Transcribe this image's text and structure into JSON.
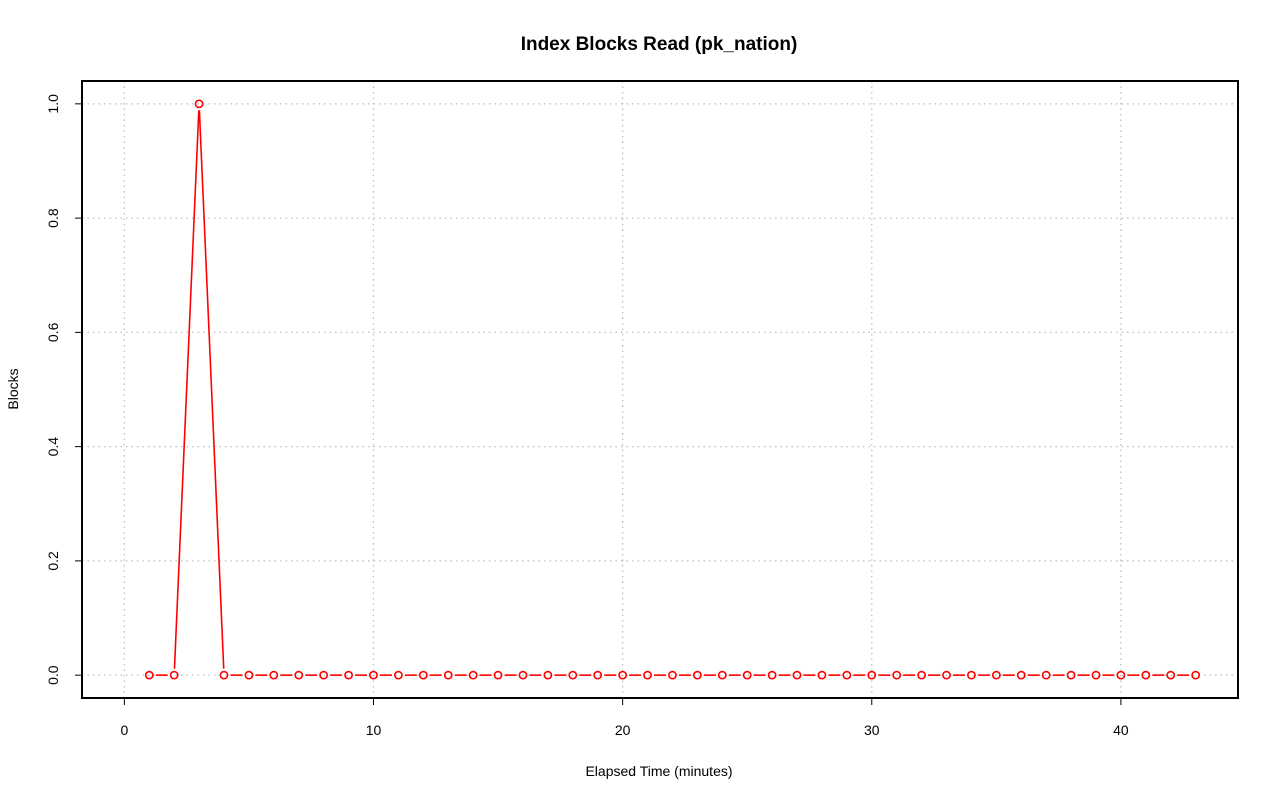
{
  "chart_data": {
    "type": "line",
    "title": "Index Blocks Read (pk_nation)",
    "xlabel": "Elapsed Time (minutes)",
    "ylabel": "Blocks",
    "xlim": [
      -1.7,
      44.7
    ],
    "ylim": [
      -0.04,
      1.04
    ],
    "xticks": [
      0,
      10,
      20,
      30,
      40
    ],
    "yticks": [
      0.0,
      0.2,
      0.4,
      0.6,
      0.8,
      1.0
    ],
    "xtick_labels": [
      "0",
      "10",
      "20",
      "30",
      "40"
    ],
    "ytick_labels": [
      "0.0",
      "0.2",
      "0.4",
      "0.6",
      "0.8",
      "1.0"
    ],
    "grid": true,
    "grid_style": "dotted",
    "series": [
      {
        "color": "#ff0000",
        "marker": "open-circle",
        "x": [
          1,
          2,
          3,
          4,
          5,
          6,
          7,
          8,
          9,
          10,
          11,
          12,
          13,
          14,
          15,
          16,
          17,
          18,
          19,
          20,
          21,
          22,
          23,
          24,
          25,
          26,
          27,
          28,
          29,
          30,
          31,
          32,
          33,
          34,
          35,
          36,
          37,
          38,
          39,
          40,
          41,
          42,
          43
        ],
        "y": [
          0,
          0,
          1,
          0,
          0,
          0,
          0,
          0,
          0,
          0,
          0,
          0,
          0,
          0,
          0,
          0,
          0,
          0,
          0,
          0,
          0,
          0,
          0,
          0,
          0,
          0,
          0,
          0,
          0,
          0,
          0,
          0,
          0,
          0,
          0,
          0,
          0,
          0,
          0,
          0,
          0,
          0,
          0
        ]
      }
    ]
  }
}
